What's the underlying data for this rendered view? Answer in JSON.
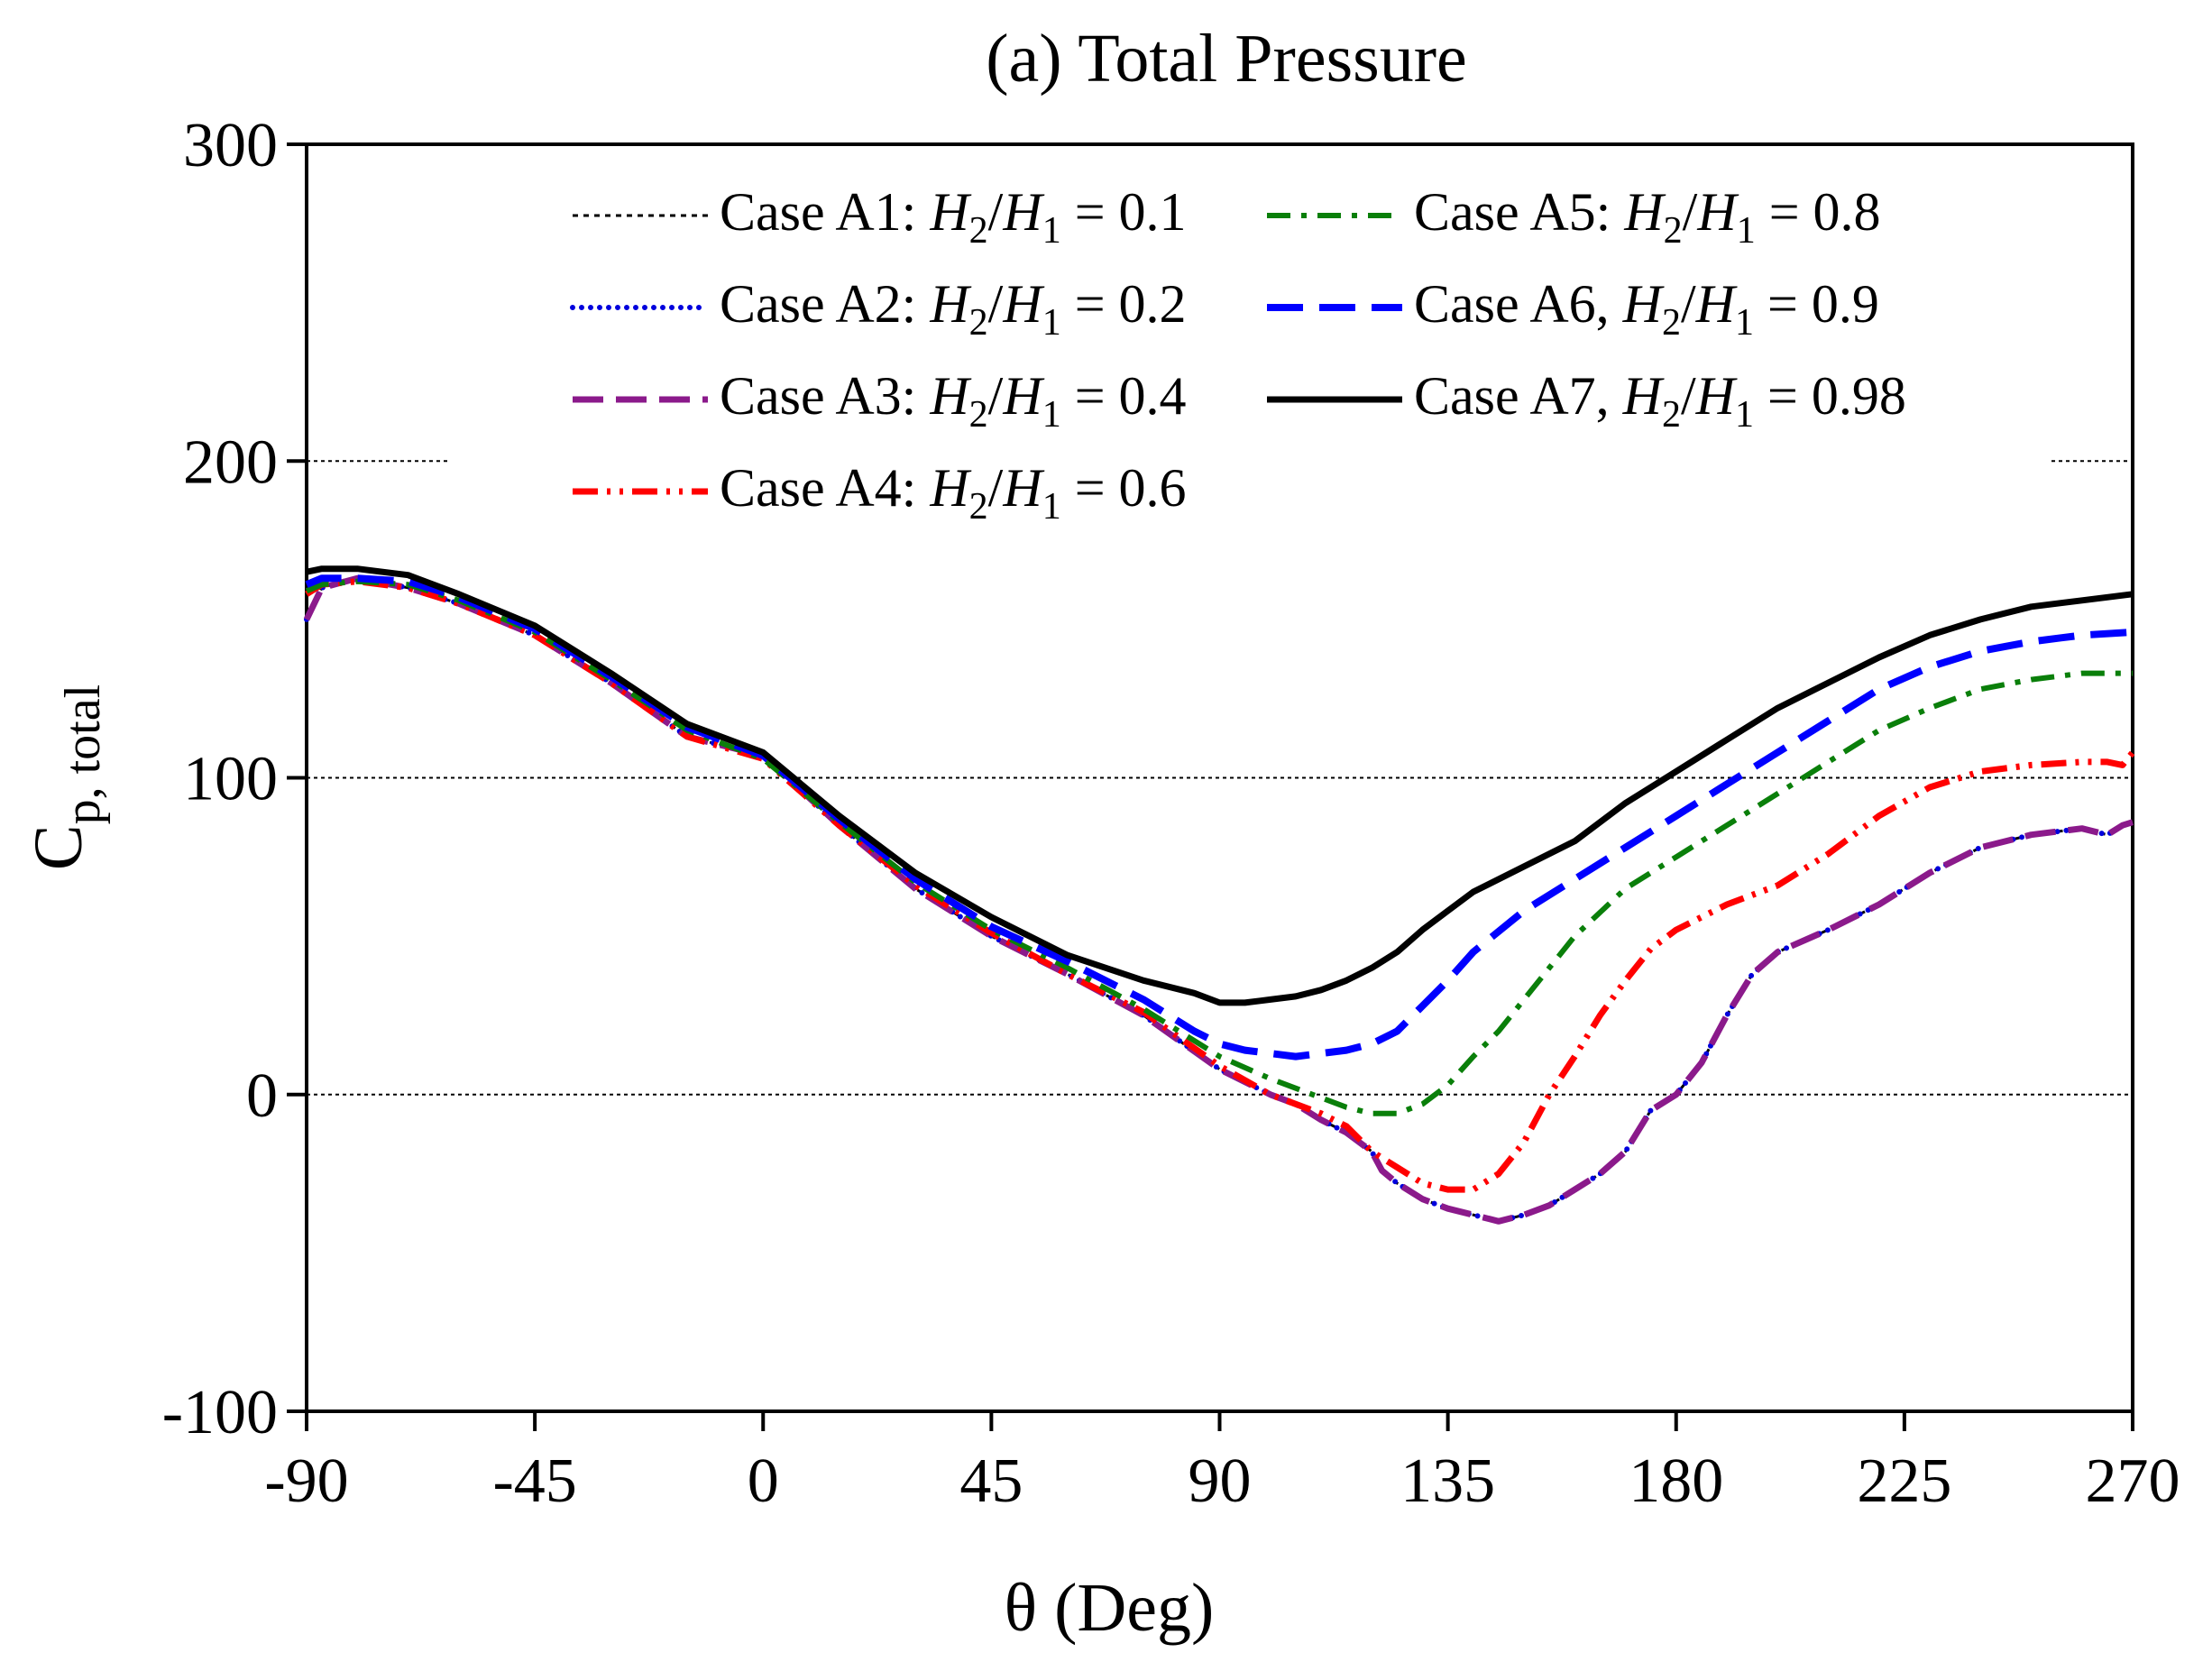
{
  "chart_data": {
    "type": "line",
    "title": "(a) Total Pressure",
    "xlabel": "θ (Deg)",
    "ylabel": {
      "main": "C",
      "sub": "p, total"
    },
    "xlim": [
      -90,
      270
    ],
    "ylim": [
      -100,
      300
    ],
    "xticks": [
      -90,
      -45,
      0,
      45,
      90,
      135,
      180,
      225,
      270
    ],
    "xtick_labels": [
      "-90",
      "-45",
      "0",
      "45",
      "90",
      "135",
      "180",
      "225",
      "270"
    ],
    "yticks": [
      -100,
      0,
      100,
      200,
      300
    ],
    "ytick_labels": [
      "-100",
      "0",
      "100",
      "200",
      "300"
    ],
    "gridlines_y": [
      0,
      100,
      200
    ],
    "legend_position": "top",
    "series": [
      {
        "name": "Case A1",
        "legend": {
          "prefix": "Case A1: ",
          "ratio": "0.1"
        },
        "color": "#000000",
        "style": "dotted-dense",
        "x": [
          -90,
          -87,
          -80,
          -70,
          -60,
          -45,
          -30,
          -15,
          0,
          15,
          30,
          45,
          60,
          75,
          90,
          100,
          105,
          110,
          115,
          120,
          122,
          125,
          130,
          135,
          140,
          145,
          150,
          155,
          160,
          165,
          170,
          175,
          180,
          185,
          190,
          195,
          200,
          210,
          220,
          230,
          240,
          250,
          260,
          265,
          268,
          270
        ],
        "y": [
          150,
          160,
          163,
          160,
          155,
          145,
          130,
          113,
          107,
          85,
          65,
          50,
          38,
          25,
          8,
          0,
          -3,
          -8,
          -12,
          -18,
          -24,
          -28,
          -33,
          -36,
          -38,
          -40,
          -38,
          -35,
          -30,
          -25,
          -18,
          -5,
          0,
          10,
          25,
          38,
          45,
          52,
          60,
          70,
          78,
          82,
          84,
          82,
          85,
          86
        ]
      },
      {
        "name": "Case A2",
        "legend": {
          "prefix": "Case A2: ",
          "ratio": "0.2"
        },
        "color": "#0000dd",
        "style": "dotted",
        "x": [
          -90,
          -87,
          -80,
          -70,
          -60,
          -45,
          -30,
          -15,
          0,
          15,
          30,
          45,
          60,
          75,
          90,
          100,
          105,
          110,
          115,
          120,
          122,
          125,
          130,
          135,
          140,
          145,
          150,
          155,
          160,
          165,
          170,
          175,
          180,
          185,
          190,
          195,
          200,
          210,
          220,
          230,
          240,
          250,
          260,
          265,
          268,
          270
        ],
        "y": [
          150,
          160,
          163,
          160,
          155,
          145,
          130,
          113,
          107,
          85,
          65,
          50,
          38,
          25,
          8,
          0,
          -3,
          -8,
          -12,
          -18,
          -24,
          -28,
          -33,
          -36,
          -38,
          -40,
          -38,
          -35,
          -30,
          -25,
          -18,
          -5,
          0,
          10,
          25,
          38,
          45,
          52,
          60,
          70,
          78,
          82,
          84,
          82,
          85,
          86
        ]
      },
      {
        "name": "Case A3",
        "legend": {
          "prefix": "Case A3: ",
          "ratio": "0.4"
        },
        "color": "#8b1a8b",
        "style": "dashed",
        "x": [
          -90,
          -87,
          -80,
          -70,
          -60,
          -45,
          -30,
          -15,
          0,
          15,
          30,
          45,
          60,
          75,
          90,
          100,
          105,
          110,
          115,
          120,
          122,
          125,
          130,
          135,
          140,
          145,
          150,
          155,
          160,
          165,
          170,
          175,
          180,
          185,
          190,
          195,
          200,
          210,
          220,
          230,
          240,
          250,
          260,
          265,
          268,
          270
        ],
        "y": [
          150,
          160,
          163,
          160,
          155,
          145,
          130,
          113,
          107,
          85,
          65,
          50,
          38,
          25,
          8,
          0,
          -3,
          -8,
          -12,
          -18,
          -24,
          -28,
          -33,
          -36,
          -38,
          -40,
          -38,
          -35,
          -30,
          -25,
          -18,
          -5,
          0,
          10,
          25,
          38,
          45,
          52,
          60,
          70,
          78,
          82,
          84,
          82,
          85,
          86
        ]
      },
      {
        "name": "Case A4",
        "legend": {
          "prefix": "Case A4: ",
          "ratio": "0.6"
        },
        "color": "#ff0000",
        "style": "dash-dot-dot",
        "x": [
          -90,
          -87,
          -80,
          -70,
          -60,
          -45,
          -30,
          -15,
          0,
          15,
          30,
          45,
          60,
          75,
          90,
          100,
          105,
          110,
          115,
          120,
          125,
          130,
          135,
          140,
          145,
          150,
          155,
          160,
          165,
          170,
          175,
          180,
          190,
          200,
          210,
          220,
          230,
          240,
          250,
          260,
          265,
          268,
          270
        ],
        "y": [
          158,
          161,
          162,
          160,
          155,
          145,
          130,
          113,
          106,
          85,
          66,
          51,
          38,
          26,
          9,
          0,
          -3,
          -6,
          -10,
          -18,
          -23,
          -28,
          -30,
          -30,
          -25,
          -15,
          0,
          12,
          25,
          36,
          46,
          52,
          60,
          66,
          76,
          88,
          97,
          102,
          104,
          105,
          105,
          104,
          108
        ]
      },
      {
        "name": "Case A5",
        "legend": {
          "prefix": "Case A5: ",
          "ratio": "0.8"
        },
        "color": "#0a7f0a",
        "style": "dash-dot",
        "x": [
          -90,
          -87,
          -80,
          -70,
          -60,
          -45,
          -30,
          -15,
          0,
          15,
          30,
          45,
          60,
          75,
          90,
          100,
          110,
          115,
          120,
          125,
          130,
          135,
          140,
          145,
          150,
          155,
          160,
          170,
          180,
          190,
          200,
          210,
          220,
          230,
          240,
          250,
          260,
          270
        ],
        "y": [
          159,
          161,
          162,
          161,
          156,
          146,
          131,
          115,
          106,
          86,
          67,
          52,
          40,
          27,
          12,
          5,
          -1,
          -4,
          -6,
          -6,
          -3,
          3,
          12,
          20,
          30,
          40,
          50,
          65,
          75,
          85,
          95,
          105,
          115,
          122,
          128,
          131,
          133,
          133
        ]
      },
      {
        "name": "Case A6",
        "legend": {
          "prefix": "Case A6, ",
          "ratio": "0.9"
        },
        "color": "#0000ff",
        "style": "long-dash",
        "x": [
          -90,
          -87,
          -80,
          -70,
          -60,
          -45,
          -30,
          -15,
          0,
          15,
          30,
          45,
          60,
          75,
          85,
          90,
          95,
          100,
          105,
          110,
          115,
          120,
          125,
          130,
          135,
          140,
          150,
          160,
          170,
          180,
          190,
          200,
          210,
          220,
          230,
          240,
          250,
          260,
          270
        ],
        "y": [
          161,
          163,
          163,
          162,
          157,
          147,
          132,
          116,
          107,
          87,
          68,
          53,
          42,
          30,
          20,
          16,
          14,
          13,
          12,
          13,
          14,
          16,
          20,
          28,
          36,
          45,
          58,
          68,
          78,
          88,
          98,
          108,
          118,
          128,
          135,
          140,
          143,
          145,
          146
        ]
      },
      {
        "name": "Case A7",
        "legend": {
          "prefix": "Case A7, ",
          "ratio": "0.98"
        },
        "color": "#000000",
        "style": "solid",
        "x": [
          -90,
          -87,
          -80,
          -70,
          -60,
          -45,
          -30,
          -15,
          0,
          15,
          30,
          45,
          60,
          75,
          85,
          90,
          95,
          100,
          105,
          110,
          115,
          120,
          125,
          130,
          135,
          140,
          150,
          160,
          170,
          180,
          190,
          200,
          210,
          220,
          230,
          240,
          250,
          260,
          265,
          270
        ],
        "y": [
          165,
          166,
          166,
          164,
          158,
          148,
          133,
          117,
          108,
          88,
          70,
          56,
          44,
          36,
          32,
          29,
          29,
          30,
          31,
          33,
          36,
          40,
          45,
          52,
          58,
          64,
          72,
          80,
          92,
          102,
          112,
          122,
          130,
          138,
          145,
          150,
          154,
          156,
          157,
          158
        ]
      }
    ]
  }
}
